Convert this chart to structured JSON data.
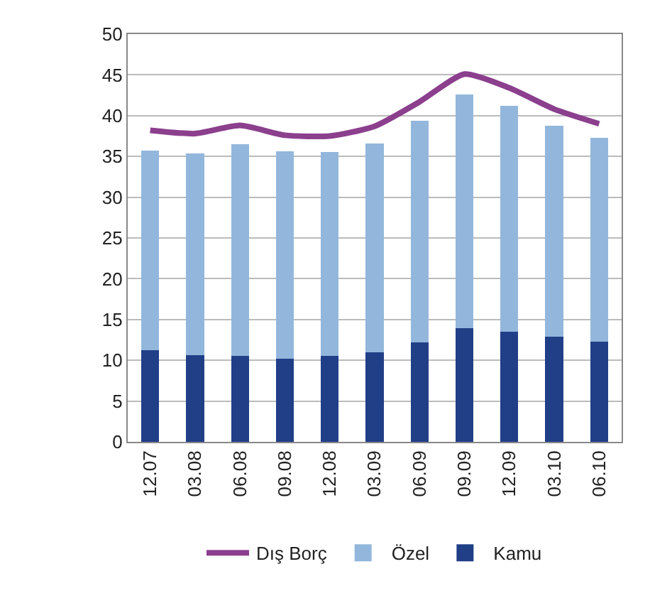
{
  "chart_data": {
    "type": "bar",
    "stacked": true,
    "categories": [
      "12.07",
      "03.08",
      "06.08",
      "09.08",
      "12.08",
      "03.09",
      "06.09",
      "09.09",
      "12.09",
      "03.10",
      "06.10"
    ],
    "series": [
      {
        "name": "Kamu",
        "color": "#213f87",
        "values": [
          11.2,
          10.6,
          10.5,
          10.2,
          10.5,
          11.0,
          12.2,
          13.9,
          13.5,
          12.9,
          12.3
        ]
      },
      {
        "name": "Özel",
        "color": "#93b7dc",
        "values": [
          24.5,
          24.8,
          26.0,
          25.4,
          25.0,
          25.6,
          27.2,
          28.7,
          27.7,
          25.9,
          25.0
        ]
      },
      {
        "name": "Dış Borç",
        "type": "line",
        "color": "#8b3f8d",
        "values": [
          38.2,
          37.8,
          38.8,
          37.6,
          37.5,
          38.7,
          41.7,
          45.1,
          43.4,
          40.8,
          39.0
        ]
      }
    ],
    "ylim": [
      0,
      50
    ],
    "yticks": [
      0,
      5,
      10,
      15,
      20,
      25,
      30,
      35,
      40,
      45,
      50
    ],
    "grid": "y",
    "legend": "bottom",
    "marker": "none",
    "line_style": "solid"
  }
}
